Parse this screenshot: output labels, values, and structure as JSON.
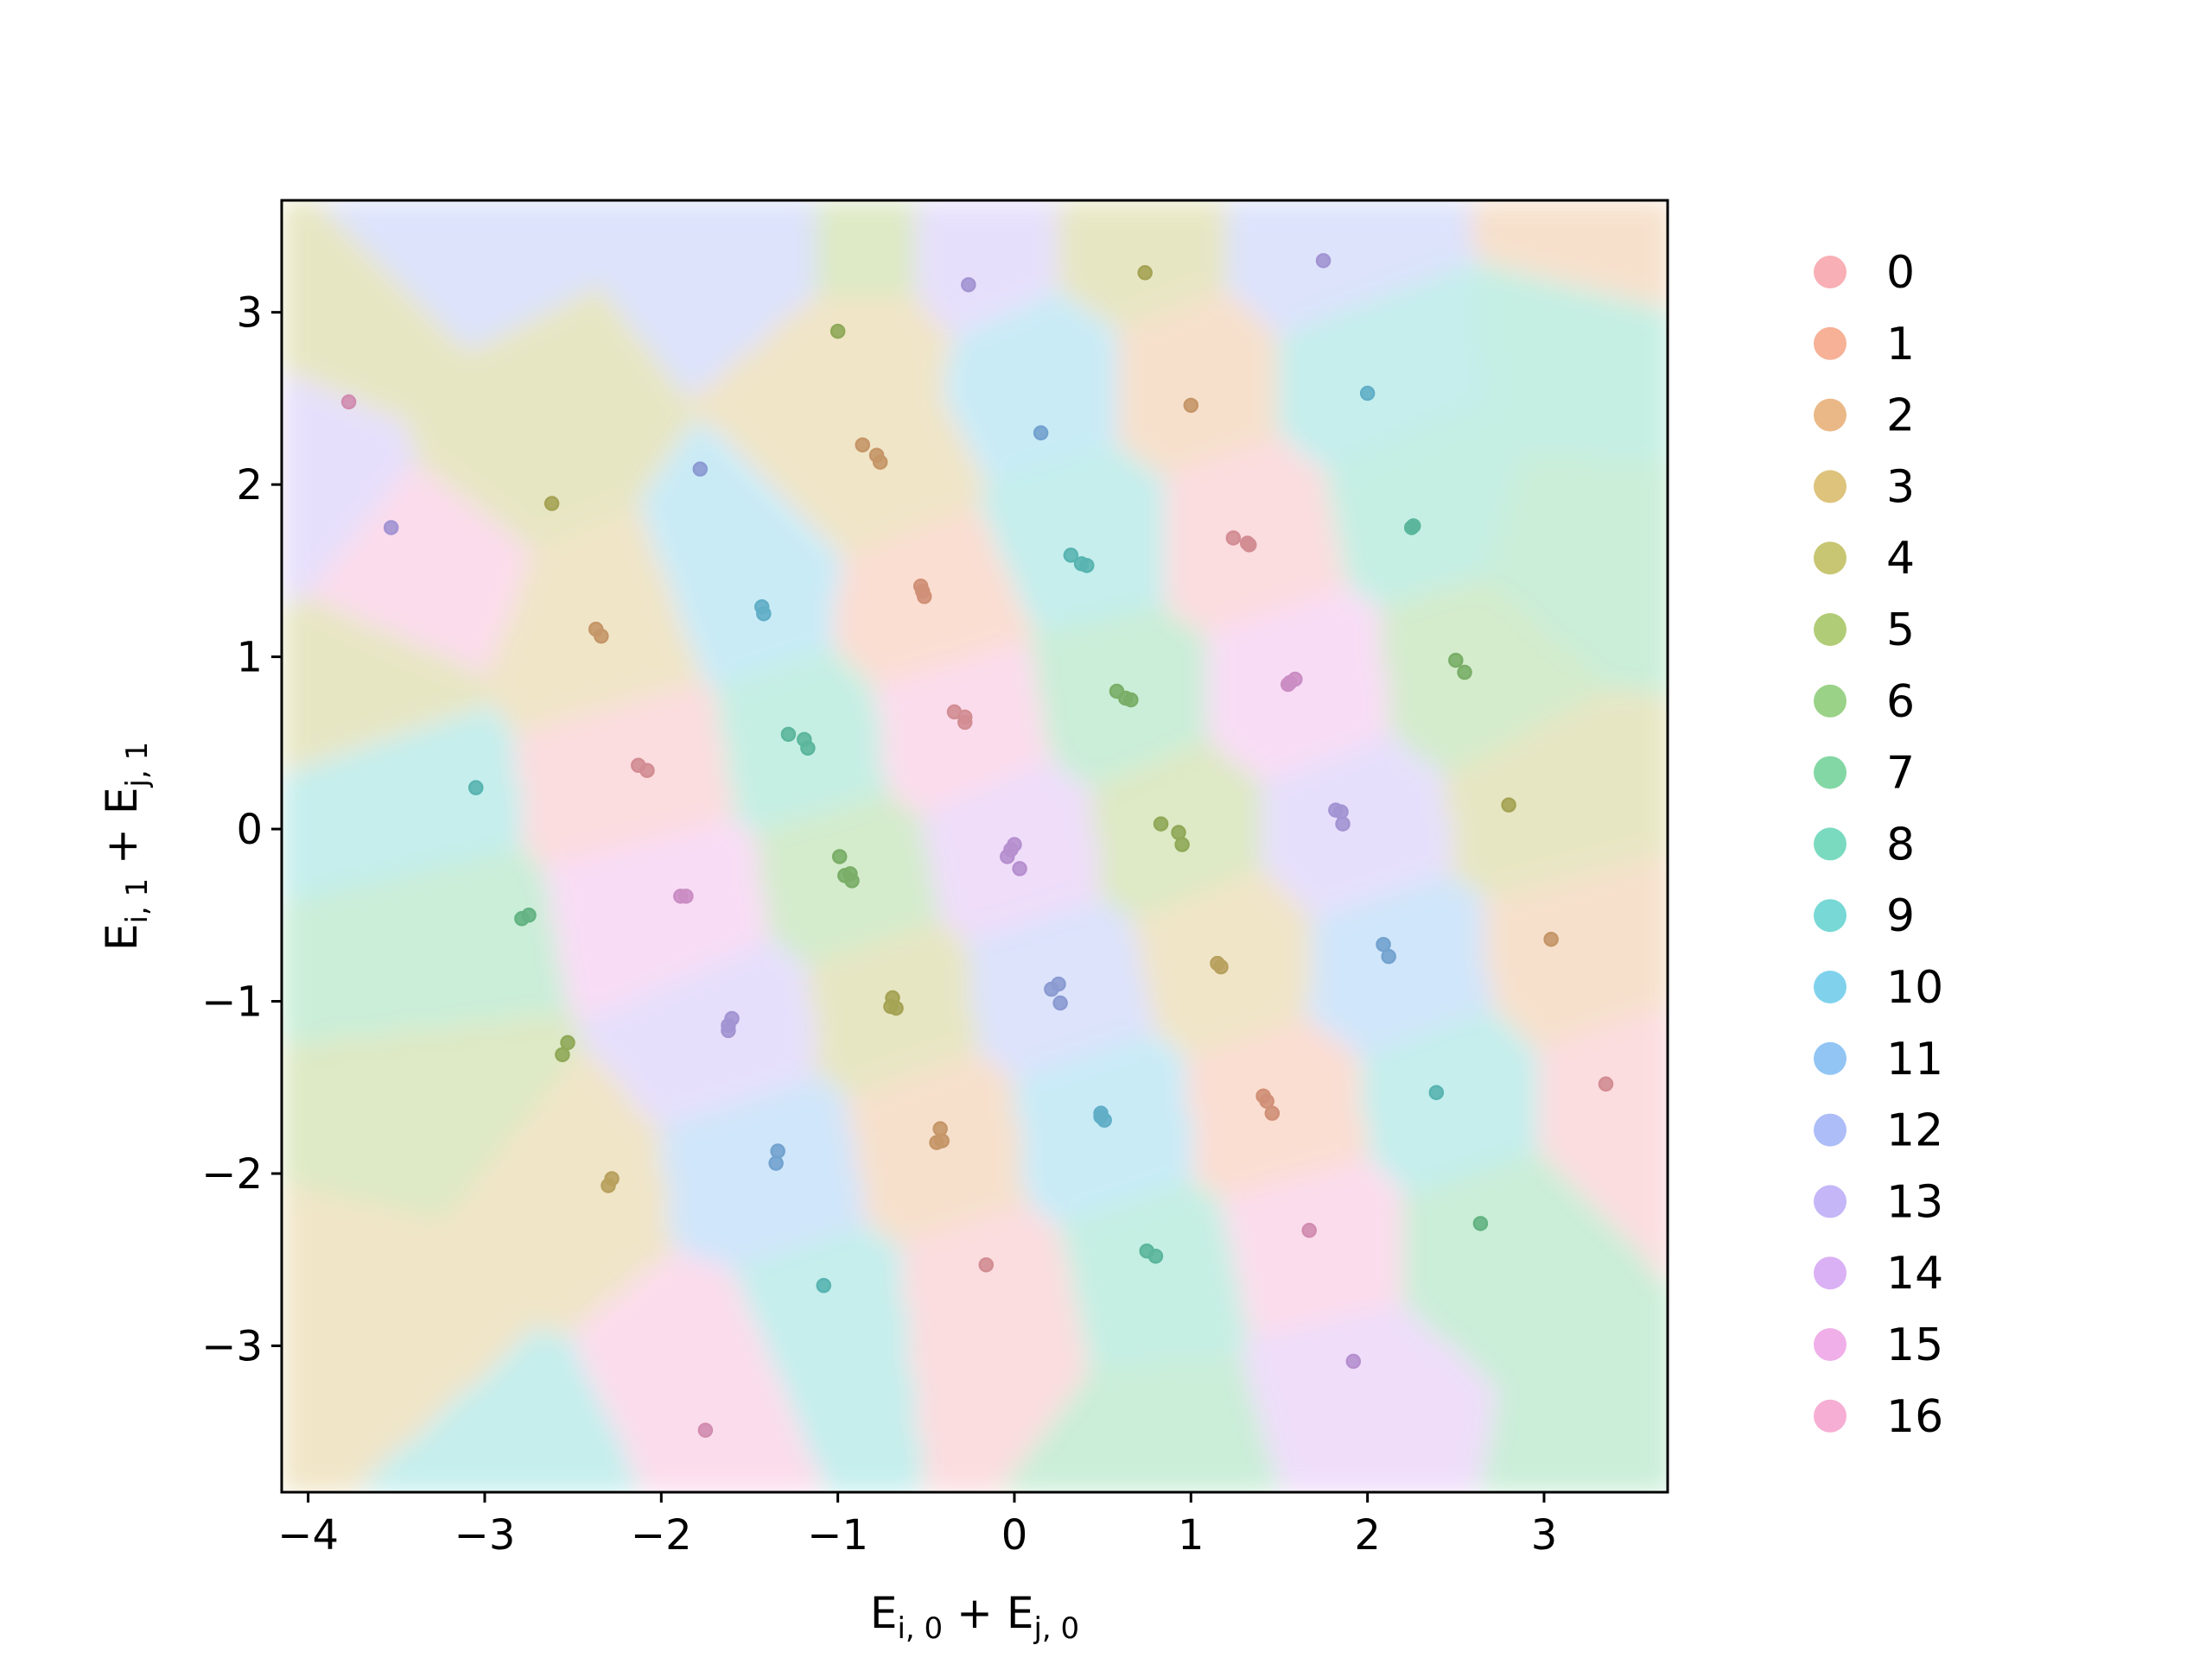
{
  "chart_data": {
    "type": "scatter",
    "title": "",
    "xlabel": "E_{i,0} + E_{j,0}",
    "ylabel": "E_{i,1} + E_{j,1}",
    "xlabel_parts": {
      "left": "E",
      "left_sub": "i, 0",
      "plus": " + ",
      "right": "E",
      "right_sub": "j, 0"
    },
    "ylabel_parts": {
      "left": "E",
      "left_sub": "i, 1",
      "plus": " + ",
      "right": "E",
      "right_sub": "j, 1"
    },
    "xlim": [
      -4.15,
      3.7
    ],
    "ylim": [
      -3.85,
      3.65
    ],
    "xticks": [
      -4,
      -3,
      -2,
      -1,
      0,
      1,
      2,
      3
    ],
    "yticks": [
      -3,
      -2,
      -1,
      0,
      1,
      2,
      3
    ],
    "xtick_labels": [
      "−4",
      "−3",
      "−2",
      "−1",
      "0",
      "1",
      "2",
      "3"
    ],
    "ytick_labels": [
      "−3",
      "−2",
      "−1",
      "0",
      "1",
      "2",
      "3"
    ],
    "grid": false,
    "legend_position": "outside-right",
    "background": "voronoi-decision-regions",
    "classes": [
      "0",
      "1",
      "2",
      "3",
      "4",
      "5",
      "6",
      "7",
      "8",
      "9",
      "10",
      "11",
      "12",
      "13",
      "14",
      "15",
      "16"
    ],
    "colors": [
      "#f7a6ad",
      "#f5a98c",
      "#e8b07a",
      "#d9bd6e",
      "#c2c063",
      "#a9c768",
      "#8fcd7a",
      "#76d39a",
      "#6bd6b8",
      "#68d4d0",
      "#72cdea",
      "#86bff3",
      "#a4b6f7",
      "#bfaef7",
      "#d6a8f3",
      "#eea6e6",
      "#f6a5cf"
    ],
    "regions": [
      {
        "x": -1.4,
        "y": 3.4,
        "c": 12
      },
      {
        "x": -3.3,
        "y": 3.3,
        "c": 12
      },
      {
        "x": -0.9,
        "y": 3.4,
        "c": 5
      },
      {
        "x": -0.2,
        "y": 3.4,
        "c": 13
      },
      {
        "x": 0.7,
        "y": 3.4,
        "c": 4
      },
      {
        "x": 1.7,
        "y": 3.4,
        "c": 12
      },
      {
        "x": 3.5,
        "y": 3.5,
        "c": 2
      },
      {
        "x": -3.6,
        "y": 3.0,
        "c": 4
      },
      {
        "x": -4.0,
        "y": 2.0,
        "c": 13
      },
      {
        "x": -0.9,
        "y": 2.8,
        "c": 3
      },
      {
        "x": 0.15,
        "y": 2.6,
        "c": 10
      },
      {
        "x": 1.0,
        "y": 2.6,
        "c": 2
      },
      {
        "x": 2.0,
        "y": 2.6,
        "c": 9
      },
      {
        "x": 3.3,
        "y": 2.7,
        "c": 8
      },
      {
        "x": -2.8,
        "y": 2.3,
        "c": 4
      },
      {
        "x": -3.4,
        "y": 1.5,
        "c": 16
      },
      {
        "x": -0.8,
        "y": 2.1,
        "c": 3
      },
      {
        "x": 0.4,
        "y": 1.7,
        "c": 9
      },
      {
        "x": 1.3,
        "y": 1.7,
        "c": 0
      },
      {
        "x": 2.3,
        "y": 1.9,
        "c": 8
      },
      {
        "x": -1.5,
        "y": 1.4,
        "c": 10
      },
      {
        "x": -2.3,
        "y": 1.1,
        "c": 3
      },
      {
        "x": -0.5,
        "y": 1.3,
        "c": 1
      },
      {
        "x": 3.2,
        "y": 1.6,
        "c": 7
      },
      {
        "x": -3.7,
        "y": 0.8,
        "c": 4
      },
      {
        "x": -0.3,
        "y": 0.6,
        "c": 16
      },
      {
        "x": 0.6,
        "y": 0.75,
        "c": 7
      },
      {
        "x": 1.6,
        "y": 0.8,
        "c": 15
      },
      {
        "x": 2.6,
        "y": 0.9,
        "c": 6
      },
      {
        "x": -1.2,
        "y": 0.5,
        "c": 8
      },
      {
        "x": -2.1,
        "y": 0.35,
        "c": 0
      },
      {
        "x": -3.5,
        "y": 0.2,
        "c": 9
      },
      {
        "x": 0.0,
        "y": -0.1,
        "c": 14
      },
      {
        "x": 0.9,
        "y": 0.0,
        "c": 5
      },
      {
        "x": 1.9,
        "y": 0.0,
        "c": 13
      },
      {
        "x": 3.0,
        "y": 0.1,
        "c": 4
      },
      {
        "x": -0.95,
        "y": -0.3,
        "c": 6
      },
      {
        "x": -1.9,
        "y": -0.45,
        "c": 15
      },
      {
        "x": -3.3,
        "y": -0.7,
        "c": 7
      },
      {
        "x": 1.2,
        "y": -0.75,
        "c": 3
      },
      {
        "x": 2.15,
        "y": -0.8,
        "c": 11
      },
      {
        "x": 3.2,
        "y": -0.7,
        "c": 2
      },
      {
        "x": 0.25,
        "y": -0.95,
        "c": 12
      },
      {
        "x": -0.7,
        "y": -1.05,
        "c": 4
      },
      {
        "x": -1.6,
        "y": -1.15,
        "c": 13
      },
      {
        "x": -3.2,
        "y": -1.6,
        "c": 5
      },
      {
        "x": 1.5,
        "y": -1.65,
        "c": 1
      },
      {
        "x": 2.45,
        "y": -1.6,
        "c": 9
      },
      {
        "x": 3.5,
        "y": -1.6,
        "c": 0
      },
      {
        "x": 0.5,
        "y": -1.7,
        "c": 10
      },
      {
        "x": -0.45,
        "y": -1.8,
        "c": 2
      },
      {
        "x": -1.35,
        "y": -1.95,
        "c": 11
      },
      {
        "x": -2.6,
        "y": -2.1,
        "c": 3
      },
      {
        "x": -3.5,
        "y": -2.9,
        "c": 3
      },
      {
        "x": 0.8,
        "y": -2.6,
        "c": 8
      },
      {
        "x": 1.7,
        "y": -2.4,
        "c": 16
      },
      {
        "x": 2.7,
        "y": -2.4,
        "c": 7
      },
      {
        "x": -0.15,
        "y": -2.8,
        "c": 0
      },
      {
        "x": -1.05,
        "y": -2.9,
        "c": 9
      },
      {
        "x": -1.75,
        "y": -3.2,
        "c": 16
      },
      {
        "x": 1.9,
        "y": -3.3,
        "c": 14
      },
      {
        "x": 3.5,
        "y": -3.6,
        "c": 7
      },
      {
        "x": -2.8,
        "y": -3.7,
        "c": 9
      },
      {
        "x": 0.9,
        "y": -3.6,
        "c": 7
      }
    ],
    "points": [
      {
        "x": -3.77,
        "y": 2.48,
        "c": 16
      },
      {
        "x": -3.53,
        "y": 1.75,
        "c": 13
      },
      {
        "x": -2.62,
        "y": 1.89,
        "c": 4
      },
      {
        "x": -1.78,
        "y": 2.09,
        "c": 12
      },
      {
        "x": -1.0,
        "y": 2.89,
        "c": 5
      },
      {
        "x": -0.26,
        "y": 3.16,
        "c": 13
      },
      {
        "x": 0.74,
        "y": 3.23,
        "c": 4
      },
      {
        "x": 1.75,
        "y": 3.3,
        "c": 13
      },
      {
        "x": 0.15,
        "y": 2.3,
        "c": 11
      },
      {
        "x": 1.0,
        "y": 2.46,
        "c": 2
      },
      {
        "x": 2.0,
        "y": 2.53,
        "c": 10
      },
      {
        "x": -0.86,
        "y": 2.23,
        "c": 2
      },
      {
        "x": -0.78,
        "y": 2.17,
        "c": 2
      },
      {
        "x": -0.76,
        "y": 2.13,
        "c": 2
      },
      {
        "x": -1.43,
        "y": 1.29,
        "c": 10
      },
      {
        "x": -1.42,
        "y": 1.25,
        "c": 10
      },
      {
        "x": -2.37,
        "y": 1.16,
        "c": 2
      },
      {
        "x": -2.34,
        "y": 1.12,
        "c": 2
      },
      {
        "x": -0.53,
        "y": 1.41,
        "c": 1
      },
      {
        "x": -0.52,
        "y": 1.38,
        "c": 1
      },
      {
        "x": -0.51,
        "y": 1.35,
        "c": 1
      },
      {
        "x": 0.32,
        "y": 1.59,
        "c": 9
      },
      {
        "x": 0.38,
        "y": 1.54,
        "c": 9
      },
      {
        "x": 0.41,
        "y": 1.53,
        "c": 9
      },
      {
        "x": 1.24,
        "y": 1.69,
        "c": 0
      },
      {
        "x": 1.32,
        "y": 1.66,
        "c": 0
      },
      {
        "x": 1.33,
        "y": 1.65,
        "c": 0
      },
      {
        "x": 2.25,
        "y": 1.75,
        "c": 8
      },
      {
        "x": 2.26,
        "y": 1.76,
        "c": 8
      },
      {
        "x": -0.34,
        "y": 0.68,
        "c": 0
      },
      {
        "x": -0.28,
        "y": 0.65,
        "c": 0
      },
      {
        "x": -0.28,
        "y": 0.62,
        "c": 0
      },
      {
        "x": -1.28,
        "y": 0.55,
        "c": 8
      },
      {
        "x": -1.19,
        "y": 0.52,
        "c": 8
      },
      {
        "x": -1.17,
        "y": 0.47,
        "c": 8
      },
      {
        "x": -2.13,
        "y": 0.37,
        "c": 0
      },
      {
        "x": -2.08,
        "y": 0.34,
        "c": 0
      },
      {
        "x": 0.58,
        "y": 0.8,
        "c": 6
      },
      {
        "x": 0.63,
        "y": 0.76,
        "c": 6
      },
      {
        "x": 0.66,
        "y": 0.75,
        "c": 6
      },
      {
        "x": 1.56,
        "y": 0.85,
        "c": 15
      },
      {
        "x": 1.59,
        "y": 0.87,
        "c": 15
      },
      {
        "x": 1.55,
        "y": 0.84,
        "c": 15
      },
      {
        "x": 2.5,
        "y": 0.98,
        "c": 6
      },
      {
        "x": 2.55,
        "y": 0.91,
        "c": 6
      },
      {
        "x": -3.05,
        "y": 0.24,
        "c": 9
      },
      {
        "x": -0.99,
        "y": -0.16,
        "c": 6
      },
      {
        "x": -0.96,
        "y": -0.27,
        "c": 6
      },
      {
        "x": -0.93,
        "y": -0.26,
        "c": 6
      },
      {
        "x": -0.92,
        "y": -0.3,
        "c": 6
      },
      {
        "x": -0.04,
        "y": -0.16,
        "c": 14
      },
      {
        "x": -0.02,
        "y": -0.12,
        "c": 14
      },
      {
        "x": 0.0,
        "y": -0.09,
        "c": 14
      },
      {
        "x": 0.03,
        "y": -0.23,
        "c": 14
      },
      {
        "x": 0.83,
        "y": 0.03,
        "c": 5
      },
      {
        "x": 0.93,
        "y": -0.02,
        "c": 5
      },
      {
        "x": 0.95,
        "y": -0.09,
        "c": 5
      },
      {
        "x": 1.82,
        "y": 0.11,
        "c": 13
      },
      {
        "x": 1.85,
        "y": 0.1,
        "c": 13
      },
      {
        "x": 1.86,
        "y": 0.03,
        "c": 13
      },
      {
        "x": 2.8,
        "y": 0.14,
        "c": 4
      },
      {
        "x": -2.79,
        "y": -0.52,
        "c": 7
      },
      {
        "x": -2.75,
        "y": -0.5,
        "c": 7
      },
      {
        "x": -1.89,
        "y": -0.39,
        "c": 15
      },
      {
        "x": -1.86,
        "y": -0.39,
        "c": 15
      },
      {
        "x": -0.69,
        "y": -0.98,
        "c": 4
      },
      {
        "x": -0.7,
        "y": -1.03,
        "c": 4
      },
      {
        "x": -0.67,
        "y": -1.04,
        "c": 4
      },
      {
        "x": 0.21,
        "y": -0.93,
        "c": 12
      },
      {
        "x": 0.25,
        "y": -0.9,
        "c": 12
      },
      {
        "x": 0.26,
        "y": -1.01,
        "c": 12
      },
      {
        "x": 1.15,
        "y": -0.78,
        "c": 3
      },
      {
        "x": 1.17,
        "y": -0.8,
        "c": 3
      },
      {
        "x": 2.09,
        "y": -0.67,
        "c": 11
      },
      {
        "x": 2.12,
        "y": -0.74,
        "c": 11
      },
      {
        "x": 3.04,
        "y": -0.64,
        "c": 2
      },
      {
        "x": -1.62,
        "y": -1.14,
        "c": 13
      },
      {
        "x": -1.62,
        "y": -1.17,
        "c": 13
      },
      {
        "x": -1.6,
        "y": -1.1,
        "c": 13
      },
      {
        "x": -2.53,
        "y": -1.24,
        "c": 5
      },
      {
        "x": -2.56,
        "y": -1.31,
        "c": 5
      },
      {
        "x": -1.34,
        "y": -1.87,
        "c": 11
      },
      {
        "x": -1.35,
        "y": -1.94,
        "c": 11
      },
      {
        "x": -0.42,
        "y": -1.74,
        "c": 2
      },
      {
        "x": -0.44,
        "y": -1.82,
        "c": 2
      },
      {
        "x": -0.41,
        "y": -1.81,
        "c": 2
      },
      {
        "x": 0.49,
        "y": -1.65,
        "c": 10
      },
      {
        "x": 0.49,
        "y": -1.67,
        "c": 10
      },
      {
        "x": 0.51,
        "y": -1.69,
        "c": 10
      },
      {
        "x": 1.41,
        "y": -1.55,
        "c": 1
      },
      {
        "x": 1.43,
        "y": -1.58,
        "c": 1
      },
      {
        "x": 1.46,
        "y": -1.65,
        "c": 1
      },
      {
        "x": 2.39,
        "y": -1.53,
        "c": 9
      },
      {
        "x": 3.35,
        "y": -1.48,
        "c": 0
      },
      {
        "x": -2.28,
        "y": -2.03,
        "c": 3
      },
      {
        "x": -2.3,
        "y": -2.07,
        "c": 3
      },
      {
        "x": -0.16,
        "y": -2.53,
        "c": 0
      },
      {
        "x": 0.75,
        "y": -2.45,
        "c": 8
      },
      {
        "x": 0.8,
        "y": -2.48,
        "c": 8
      },
      {
        "x": 1.67,
        "y": -2.33,
        "c": 16
      },
      {
        "x": 2.64,
        "y": -2.29,
        "c": 7
      },
      {
        "x": -1.08,
        "y": -2.65,
        "c": 9
      },
      {
        "x": -1.75,
        "y": -3.49,
        "c": 16
      },
      {
        "x": 1.92,
        "y": -3.09,
        "c": 14
      }
    ]
  }
}
